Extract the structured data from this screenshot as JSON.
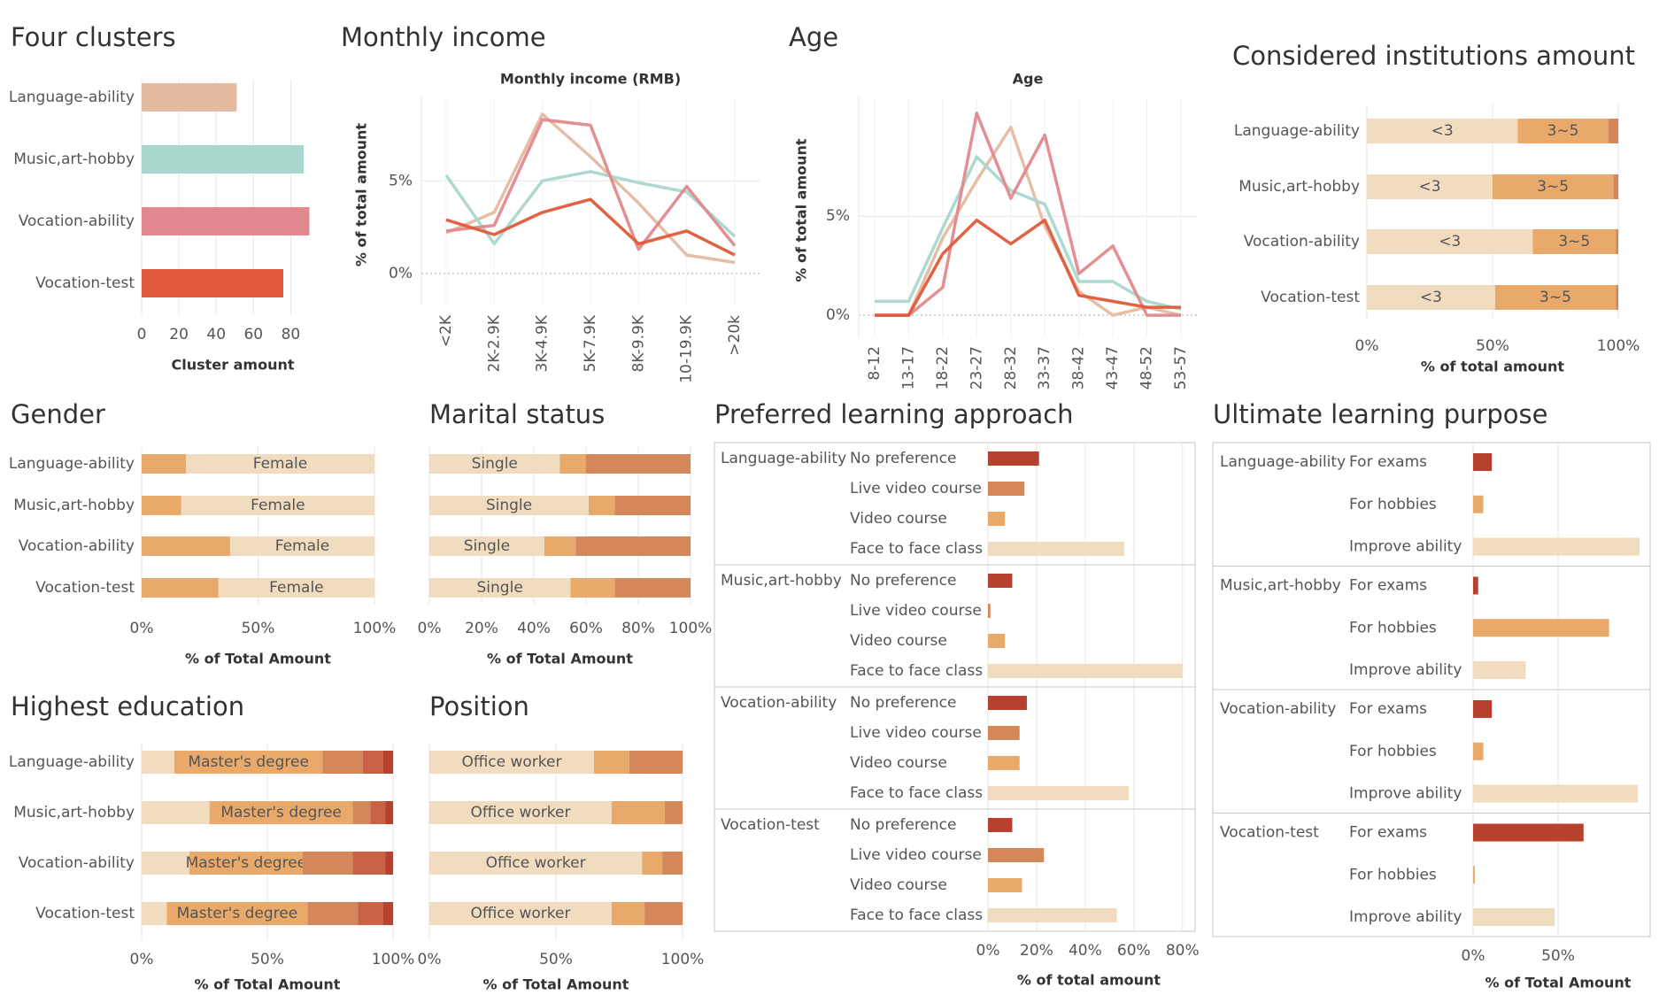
{
  "colors": {
    "cluster": [
      "#E4BBA0",
      "#A8D8CD",
      "#E1898E",
      "#E05A3A"
    ],
    "stack": [
      "#F2DCC0",
      "#E8A96A",
      "#D4875A",
      "#C96144",
      "#B8402E"
    ],
    "stack_light": "#F2DCC0",
    "stack_orange": "#E8A96A",
    "stack_mid": "#D4875A",
    "stack_dark": "#C96144",
    "stack_darkest": "#B8402E",
    "axis_text": "#555555",
    "title_text": "#333333",
    "grid": "#E6E6E6",
    "divider": "#C8C8C8"
  },
  "panels": {
    "clusters": {
      "title": "Four clusters"
    },
    "income": {
      "title": "Monthly income"
    },
    "age": {
      "title": "Age"
    },
    "institutions": {
      "title": "Considered institutions amount"
    },
    "gender": {
      "title": "Gender"
    },
    "marital": {
      "title": "Marital status"
    },
    "approach": {
      "title": "Preferred learning approach"
    },
    "purpose": {
      "title": "Ultimate learning purpose"
    },
    "education": {
      "title": "Highest education"
    },
    "position": {
      "title": "Position"
    }
  },
  "chart_data": [
    {
      "id": "clusters",
      "type": "bar",
      "orientation": "horizontal",
      "categories": [
        "Language-ability",
        "Music,art-hobby",
        "Vocation-ability",
        "Vocation-test"
      ],
      "values": [
        51,
        87,
        90,
        76
      ],
      "xlabel": "Cluster amount",
      "xticks": [
        0,
        20,
        40,
        60,
        80
      ],
      "xlim": [
        0,
        95
      ]
    },
    {
      "id": "income",
      "type": "line",
      "title": "Monthly income (RMB)",
      "ylabel": "% of total amount",
      "x": [
        "<2K",
        "2K-2.9K",
        "3K-4.9K",
        "5K-7.9K",
        "8K-9.9K",
        "10-19.9K",
        ">20k"
      ],
      "yticks": [
        "0%",
        "5%"
      ],
      "ylim": [
        -1,
        9.5
      ],
      "series": [
        {
          "values": [
            2.2,
            3.3,
            8.6,
            6.3,
            3.8,
            1.0,
            0.6
          ]
        },
        {
          "values": [
            5.3,
            1.6,
            5.0,
            5.5,
            4.9,
            4.4,
            2.0
          ]
        },
        {
          "values": [
            2.3,
            2.6,
            8.3,
            8.0,
            1.3,
            4.7,
            1.5
          ]
        },
        {
          "values": [
            2.9,
            2.1,
            3.3,
            4.0,
            1.6,
            2.3,
            1.0
          ]
        }
      ]
    },
    {
      "id": "age",
      "type": "line",
      "title": "Age",
      "ylabel": "% of total amount",
      "x": [
        "8-12",
        "13-17",
        "18-22",
        "23-27",
        "28-32",
        "33-37",
        "38-42",
        "43-47",
        "48-52",
        "53-57"
      ],
      "yticks": [
        "0%",
        "5%"
      ],
      "ylim": [
        -0.4,
        11
      ],
      "series": [
        {
          "values": [
            0.0,
            0.0,
            3.9,
            6.8,
            9.5,
            4.5,
            1.2,
            0.0,
            0.4,
            0.0
          ]
        },
        {
          "values": [
            0.7,
            0.7,
            4.4,
            8.0,
            6.3,
            5.6,
            1.7,
            1.7,
            0.7,
            0.3
          ]
        },
        {
          "values": [
            0.0,
            0.0,
            1.4,
            10.2,
            5.9,
            9.1,
            2.1,
            3.5,
            0.0,
            0.0
          ]
        },
        {
          "values": [
            0.0,
            0.0,
            3.1,
            4.8,
            3.6,
            4.8,
            1.0,
            0.7,
            0.4,
            0.4
          ]
        }
      ]
    },
    {
      "id": "institutions",
      "type": "bar",
      "stacked": "100%",
      "categories": [
        "Language-ability",
        "Music,art-hobby",
        "Vocation-ability",
        "Vocation-test"
      ],
      "segment_labels": [
        "<3",
        "3~5",
        ""
      ],
      "series": [
        {
          "name": "<3",
          "values": [
            60,
            50,
            66,
            51
          ]
        },
        {
          "name": "3~5",
          "values": [
            36,
            48,
            33,
            48
          ]
        },
        {
          "name": "",
          "values": [
            4,
            2,
            1,
            1
          ]
        }
      ],
      "xlabel": "% of total amount",
      "xticks": [
        "0%",
        "50%",
        "100%"
      ]
    },
    {
      "id": "gender",
      "type": "bar",
      "stacked": "100%",
      "categories": [
        "Language-ability",
        "Music,art-hobby",
        "Vocation-ability",
        "Vocation-test"
      ],
      "segment_labels": [
        "",
        "Female"
      ],
      "series": [
        {
          "name": "",
          "values": [
            19,
            17,
            38,
            33
          ]
        },
        {
          "name": "Female",
          "values": [
            81,
            83,
            62,
            67
          ]
        }
      ],
      "xlabel": "% of Total Amount",
      "xticks": [
        "0%",
        "50%",
        "100%"
      ]
    },
    {
      "id": "marital",
      "type": "bar",
      "stacked": "100%",
      "categories": [
        "Language-ability",
        "Music,art-hobby",
        "Vocation-ability",
        "Vocation-test"
      ],
      "segment_labels": [
        "Single",
        "",
        ""
      ],
      "series": [
        {
          "name": "Single",
          "values": [
            50,
            61,
            44,
            54
          ]
        },
        {
          "name": "",
          "values": [
            10,
            10,
            12,
            17
          ]
        },
        {
          "name": "",
          "values": [
            40,
            29,
            44,
            29
          ]
        }
      ],
      "xlabel": "% of Total Amount",
      "xticks": [
        "0%",
        "20%",
        "40%",
        "60%",
        "80%",
        "100%"
      ]
    },
    {
      "id": "approach",
      "type": "bar",
      "orientation": "horizontal",
      "groups": [
        "Language-ability",
        "Music,art-hobby",
        "Vocation-ability",
        "Vocation-test"
      ],
      "categories": [
        "No preference",
        "Live video course",
        "Video course",
        "Face to face class"
      ],
      "series": [
        {
          "name": "Language-ability",
          "values": [
            21,
            15,
            7,
            56
          ]
        },
        {
          "name": "Music,art-hobby",
          "values": [
            10,
            1,
            7,
            80
          ]
        },
        {
          "name": "Vocation-ability",
          "values": [
            16,
            13,
            13,
            58
          ]
        },
        {
          "name": "Vocation-test",
          "values": [
            10,
            23,
            14,
            53
          ]
        }
      ],
      "xlabel": "% of total amount",
      "xticks": [
        "0%",
        "20%",
        "40%",
        "60%",
        "80%"
      ],
      "xlim": [
        0,
        83
      ]
    },
    {
      "id": "purpose",
      "type": "bar",
      "orientation": "horizontal",
      "groups": [
        "Language-ability",
        "Music,art-hobby",
        "Vocation-ability",
        "Vocation-test"
      ],
      "categories": [
        "For exams",
        "For hobbies",
        "Improve ability"
      ],
      "series": [
        {
          "name": "Language-ability",
          "values": [
            11,
            6,
            98
          ]
        },
        {
          "name": "Music,art-hobby",
          "values": [
            3,
            80,
            31
          ]
        },
        {
          "name": "Vocation-ability",
          "values": [
            11,
            6,
            97
          ]
        },
        {
          "name": "Vocation-test",
          "values": [
            65,
            1,
            48
          ]
        }
      ],
      "xlabel": "% of Total Amount",
      "xticks": [
        "0%",
        "50%"
      ],
      "xlim": [
        0,
        100
      ]
    },
    {
      "id": "education",
      "type": "bar",
      "stacked": "100%",
      "categories": [
        "Language-ability",
        "Music,art-hobby",
        "Vocation-ability",
        "Vocation-test"
      ],
      "segment_labels": [
        "",
        "Master's degree",
        "",
        "",
        ""
      ],
      "series": [
        {
          "name": "",
          "values": [
            13,
            27,
            19,
            10
          ]
        },
        {
          "name": "Master's degree",
          "values": [
            59,
            57,
            45,
            56
          ]
        },
        {
          "name": "",
          "values": [
            16,
            7,
            20,
            20
          ]
        },
        {
          "name": "",
          "values": [
            8,
            6,
            13,
            10
          ]
        },
        {
          "name": "",
          "values": [
            4,
            3,
            3,
            4
          ]
        }
      ],
      "xlabel": "% of Total Amount",
      "xticks": [
        "0%",
        "50%",
        "100%"
      ]
    },
    {
      "id": "position",
      "type": "bar",
      "stacked": "100%",
      "categories": [
        "Language-ability",
        "Music,art-hobby",
        "Vocation-ability",
        "Vocation-test"
      ],
      "segment_labels": [
        "Office worker",
        "",
        ""
      ],
      "series": [
        {
          "name": "Office worker",
          "values": [
            65,
            72,
            84,
            72
          ]
        },
        {
          "name": "",
          "values": [
            14,
            21,
            8,
            13
          ]
        },
        {
          "name": "",
          "values": [
            21,
            7,
            8,
            15
          ]
        }
      ],
      "xlabel": "% of Total Amount",
      "xticks": [
        "0%",
        "50%",
        "100%"
      ]
    }
  ]
}
